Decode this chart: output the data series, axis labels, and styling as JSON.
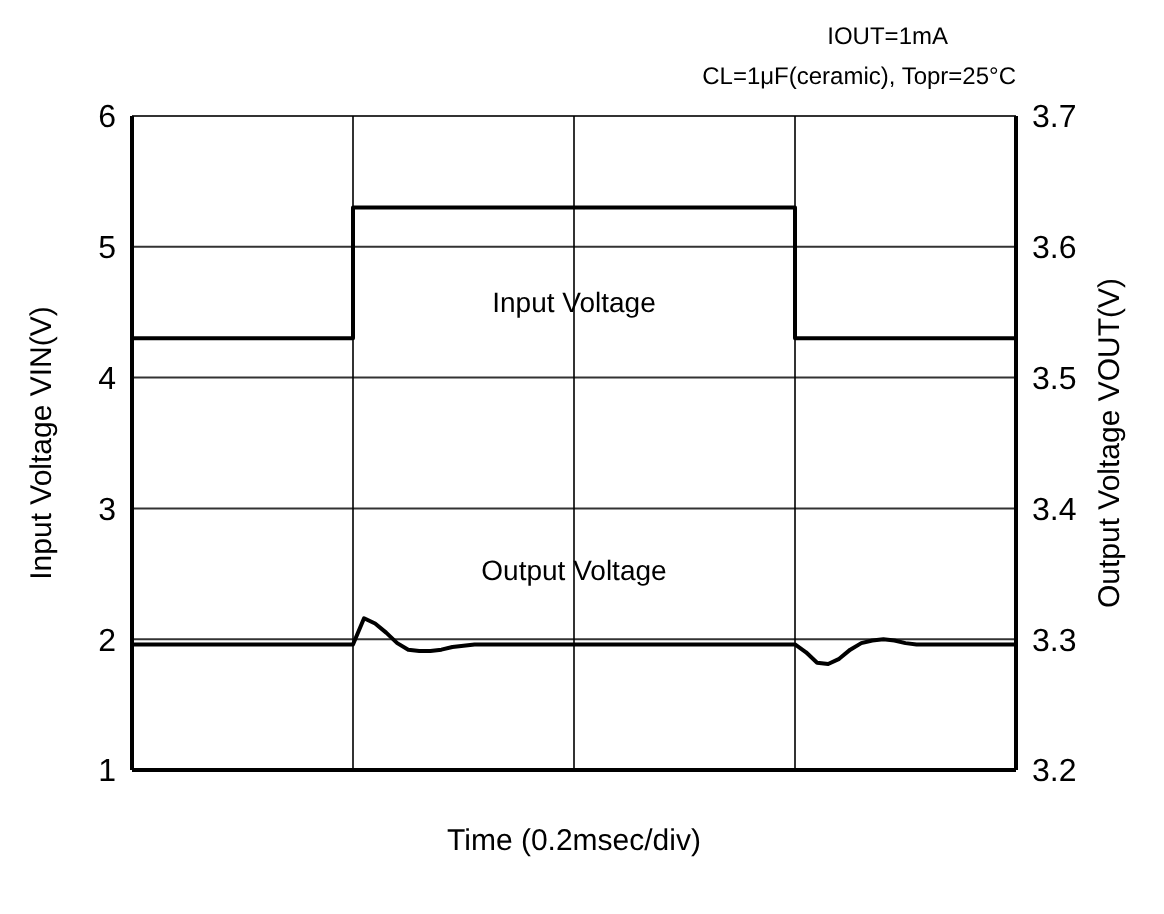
{
  "chart_data": {
    "type": "line",
    "xlabel": "Time (0.2msec/div)",
    "ylabel": "Input Voltage VIN(V)",
    "y2label": "Output Voltage VOUT(V)",
    "annotations": [
      "IOUT=1mA",
      "CL=1μF(ceramic), Topr=25°C"
    ],
    "categories": [
      null,
      null,
      null,
      null,
      null,
      null,
      null,
      null,
      null,
      null,
      null,
      null,
      null,
      null,
      null,
      null,
      null,
      null,
      null,
      null,
      null,
      null,
      null,
      null,
      null,
      null,
      null,
      null,
      null,
      null,
      null,
      null,
      null,
      null,
      null,
      null,
      null,
      null,
      null,
      null,
      null,
      null,
      null,
      null,
      null,
      null,
      null,
      null,
      null,
      null,
      null,
      null,
      null,
      null,
      null,
      null,
      null,
      null,
      null,
      null,
      null,
      null,
      null,
      null,
      null,
      null,
      null,
      null,
      null,
      null,
      null,
      null,
      null,
      null,
      null,
      null,
      null,
      null,
      null,
      null,
      null
    ],
    "series": [
      {
        "name": "Input Voltage",
        "type": "step",
        "color": "#000000",
        "values": [
          4.3,
          4.3,
          4.3,
          4.3,
          4.3,
          4.3,
          4.3,
          4.3,
          4.3,
          4.3,
          4.3,
          4.3,
          4.3,
          4.3,
          4.3,
          4.3,
          4.3,
          4.3,
          4.3,
          4.3,
          5.3,
          5.3,
          5.3,
          5.3,
          5.3,
          5.3,
          5.3,
          5.3,
          5.3,
          5.3,
          5.3,
          5.3,
          5.3,
          5.3,
          5.3,
          5.3,
          5.3,
          5.3,
          5.3,
          5.3,
          5.3,
          5.3,
          5.3,
          5.3,
          5.3,
          5.3,
          5.3,
          5.3,
          5.3,
          5.3,
          5.3,
          5.3,
          5.3,
          5.3,
          5.3,
          5.3,
          5.3,
          5.3,
          5.3,
          5.3,
          4.3,
          4.3,
          4.3,
          4.3,
          4.3,
          4.3,
          4.3,
          4.3,
          4.3,
          4.3,
          4.3,
          4.3,
          4.3,
          4.3,
          4.3,
          4.3,
          4.3,
          4.3,
          4.3,
          4.3,
          4.3
        ]
      },
      {
        "name": "Output Voltage",
        "type": "line",
        "axis": "y2",
        "color": "#000000",
        "values": [
          3.296,
          3.296,
          3.296,
          3.296,
          3.296,
          3.296,
          3.296,
          3.296,
          3.296,
          3.296,
          3.296,
          3.296,
          3.296,
          3.296,
          3.296,
          3.296,
          3.296,
          3.296,
          3.296,
          3.296,
          3.296,
          3.316,
          3.312,
          3.305,
          3.297,
          3.292,
          3.291,
          3.291,
          3.292,
          3.294,
          3.295,
          3.296,
          3.296,
          3.296,
          3.296,
          3.296,
          3.296,
          3.296,
          3.296,
          3.296,
          3.296,
          3.296,
          3.296,
          3.296,
          3.296,
          3.296,
          3.296,
          3.296,
          3.296,
          3.296,
          3.296,
          3.296,
          3.296,
          3.296,
          3.296,
          3.296,
          3.296,
          3.296,
          3.296,
          3.296,
          3.296,
          3.29,
          3.282,
          3.281,
          3.285,
          3.292,
          3.297,
          3.299,
          3.3,
          3.299,
          3.297,
          3.296,
          3.296,
          3.296,
          3.296,
          3.296,
          3.296,
          3.296,
          3.296,
          3.296,
          3.296
        ]
      }
    ],
    "ylim": [
      1,
      6
    ],
    "yticks": [
      1,
      2,
      3,
      4,
      5,
      6
    ],
    "y2lim": [
      3.2,
      3.7
    ],
    "y2ticks": [
      3.2,
      3.3,
      3.4,
      3.5,
      3.6,
      3.7
    ],
    "grid": true,
    "legend": false,
    "tick_labels": "y",
    "marker": "none",
    "line_style": "solid"
  }
}
